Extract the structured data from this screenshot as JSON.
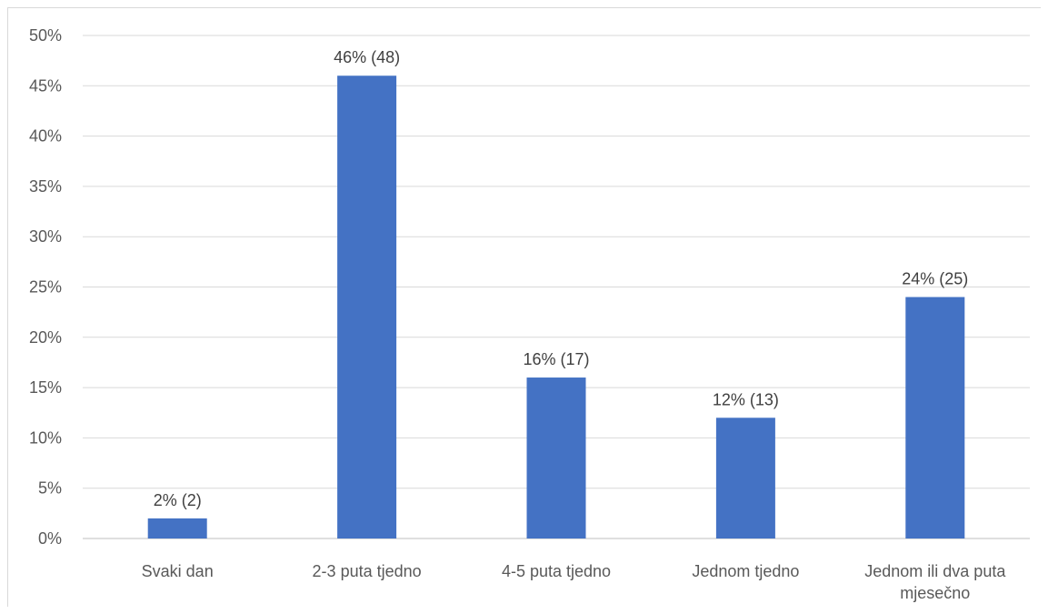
{
  "chart_data": {
    "type": "bar",
    "title": "",
    "xlabel": "",
    "ylabel": "",
    "categories": [
      [
        "Svaki dan"
      ],
      [
        "2-3 puta tjedno"
      ],
      [
        "4-5 puta tjedno"
      ],
      [
        "Jednom tjedno"
      ],
      [
        "Jednom ili dva puta",
        "mjesečno"
      ]
    ],
    "values": [
      2,
      46,
      16,
      12,
      24
    ],
    "counts": [
      2,
      48,
      17,
      13,
      25
    ],
    "data_labels": [
      "2% (2)",
      "46% (48)",
      "16% (17)",
      "12% (13)",
      "24% (25)"
    ],
    "ylim": [
      0,
      50
    ],
    "y_ticks": [
      0,
      5,
      10,
      15,
      20,
      25,
      30,
      35,
      40,
      45,
      50
    ],
    "y_tick_labels": [
      "0%",
      "5%",
      "10%",
      "15%",
      "20%",
      "25%",
      "30%",
      "35%",
      "40%",
      "45%",
      "50%"
    ],
    "grid": true,
    "legend": "none",
    "bar_color": "#4472c4"
  }
}
